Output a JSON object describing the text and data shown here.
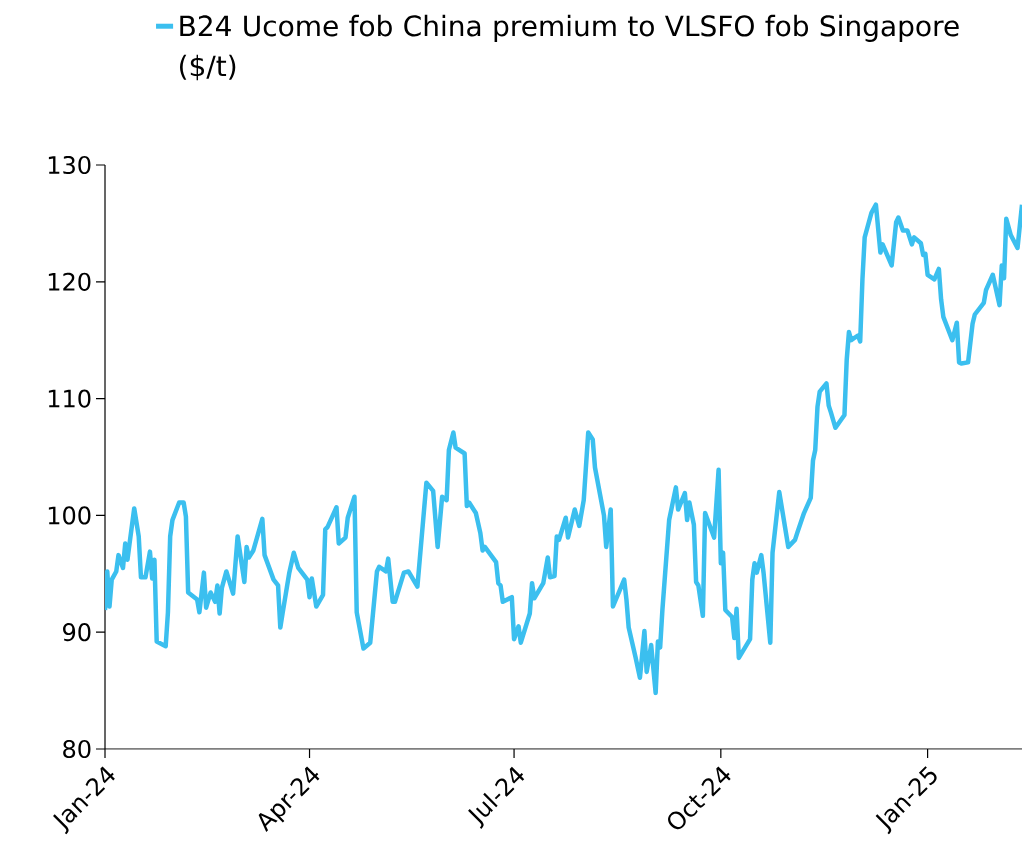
{
  "chart_data": {
    "type": "line",
    "legend": "top",
    "marker": "none",
    "line_style": "solid",
    "xlim": [
      "2024-01-01",
      "2025-02-12"
    ],
    "ylim": [
      80,
      130
    ],
    "yticks": [
      80,
      90,
      100,
      110,
      120,
      130
    ],
    "xticks": [
      {
        "value": "2024-01-01",
        "label": "Jan-24"
      },
      {
        "value": "2024-04-01",
        "label": "Apr-24"
      },
      {
        "value": "2024-07-01",
        "label": "Jul-24"
      },
      {
        "value": "2024-10-01",
        "label": "Oct-24"
      },
      {
        "value": "2025-01-01",
        "label": "Jan-25"
      }
    ],
    "x": [
      "2024-01-01",
      "2024-01-02",
      "2024-01-03",
      "2024-01-04",
      "2024-01-06",
      "2024-01-07",
      "2024-01-09",
      "2024-01-10",
      "2024-01-11",
      "2024-01-12",
      "2024-01-14",
      "2024-01-16",
      "2024-01-17",
      "2024-01-19",
      "2024-01-21",
      "2024-01-22",
      "2024-01-23",
      "2024-01-24",
      "2024-01-28",
      "2024-01-29",
      "2024-01-30",
      "2024-01-31",
      "2024-02-03",
      "2024-02-05",
      "2024-02-06",
      "2024-02-07",
      "2024-02-11",
      "2024-02-12",
      "2024-02-14",
      "2024-02-15",
      "2024-02-17",
      "2024-02-19",
      "2024-02-20",
      "2024-02-21",
      "2024-02-22",
      "2024-02-24",
      "2024-02-27",
      "2024-02-29",
      "2024-03-03",
      "2024-03-04",
      "2024-03-05",
      "2024-03-07",
      "2024-03-11",
      "2024-03-12",
      "2024-03-16",
      "2024-03-18",
      "2024-03-19",
      "2024-03-20",
      "2024-03-23",
      "2024-03-25",
      "2024-03-27",
      "2024-03-31",
      "2024-04-01",
      "2024-04-02",
      "2024-04-04",
      "2024-04-07",
      "2024-04-08",
      "2024-04-09",
      "2024-04-13",
      "2024-04-14",
      "2024-04-17",
      "2024-04-18",
      "2024-04-21",
      "2024-04-22",
      "2024-04-25",
      "2024-04-28",
      "2024-05-01",
      "2024-05-02",
      "2024-05-05",
      "2024-05-06",
      "2024-05-08",
      "2024-05-09",
      "2024-05-13",
      "2024-05-15",
      "2024-05-19",
      "2024-05-23",
      "2024-05-26",
      "2024-05-28",
      "2024-05-30",
      "2024-06-01",
      "2024-06-02",
      "2024-06-04",
      "2024-06-05",
      "2024-06-09",
      "2024-06-10",
      "2024-06-11",
      "2024-06-14",
      "2024-06-16",
      "2024-06-17",
      "2024-06-18",
      "2024-06-23",
      "2024-06-24",
      "2024-06-25",
      "2024-06-26",
      "2024-06-30",
      "2024-07-01",
      "2024-07-03",
      "2024-07-04",
      "2024-07-08",
      "2024-07-09",
      "2024-07-10",
      "2024-07-14",
      "2024-07-16",
      "2024-07-17",
      "2024-07-19",
      "2024-07-20",
      "2024-07-21",
      "2024-07-24",
      "2024-07-25",
      "2024-07-28",
      "2024-07-30",
      "2024-08-01",
      "2024-08-03",
      "2024-08-05",
      "2024-08-06",
      "2024-08-10",
      "2024-08-11",
      "2024-08-13",
      "2024-08-14",
      "2024-08-19",
      "2024-08-20",
      "2024-08-21",
      "2024-08-24",
      "2024-08-26",
      "2024-08-28",
      "2024-08-29",
      "2024-08-31",
      "2024-09-02",
      "2024-09-03",
      "2024-09-04",
      "2024-09-05",
      "2024-09-08",
      "2024-09-11",
      "2024-09-12",
      "2024-09-15",
      "2024-09-16",
      "2024-09-17",
      "2024-09-19",
      "2024-09-20",
      "2024-09-21",
      "2024-09-23",
      "2024-09-24",
      "2024-09-28",
      "2024-09-30",
      "2024-10-01",
      "2024-10-02",
      "2024-10-03",
      "2024-10-06",
      "2024-10-07",
      "2024-10-08",
      "2024-10-09",
      "2024-10-14",
      "2024-10-15",
      "2024-10-16",
      "2024-10-17",
      "2024-10-19",
      "2024-10-20",
      "2024-10-23",
      "2024-10-24",
      "2024-10-27",
      "2024-10-31",
      "2024-11-03",
      "2024-11-04",
      "2024-11-07",
      "2024-11-10",
      "2024-11-11",
      "2024-11-12",
      "2024-11-13",
      "2024-11-14",
      "2024-11-17",
      "2024-11-18",
      "2024-11-19",
      "2024-11-21",
      "2024-11-25",
      "2024-11-26",
      "2024-11-27",
      "2024-11-28",
      "2024-12-01",
      "2024-12-02",
      "2024-12-03",
      "2024-12-04",
      "2024-12-07",
      "2024-12-09",
      "2024-12-11",
      "2024-12-12",
      "2024-12-16",
      "2024-12-18",
      "2024-12-19",
      "2024-12-21",
      "2024-12-23",
      "2024-12-25",
      "2024-12-26",
      "2024-12-29",
      "2024-12-30",
      "2024-12-31",
      "2025-01-01",
      "2025-01-04",
      "2025-01-06",
      "2025-01-07",
      "2025-01-08",
      "2025-01-12",
      "2025-01-14",
      "2025-01-15",
      "2025-01-16",
      "2025-01-19",
      "2025-01-21",
      "2025-01-22",
      "2025-01-26",
      "2025-01-27",
      "2025-01-30",
      "2025-02-02",
      "2025-02-03",
      "2025-02-04",
      "2025-02-05",
      "2025-02-07",
      "2025-02-10",
      "2025-02-12"
    ],
    "series": [
      {
        "name": "B24 Ucome fob China premium to VLSFO fob Singapore ($/t)",
        "color": "#3bbfef",
        "values": [
          91.9,
          95.2,
          92.2,
          94.5,
          95.2,
          96.6,
          95.5,
          97.6,
          96.2,
          97.7,
          100.6,
          98.2,
          94.7,
          94.7,
          96.9,
          94.6,
          96.2,
          89.2,
          88.8,
          91.7,
          98.2,
          99.6,
          101.1,
          101.1,
          99.9,
          93.4,
          92.8,
          91.7,
          95.1,
          92.1,
          93.4,
          92.6,
          94.0,
          91.6,
          93.8,
          95.2,
          93.3,
          98.2,
          94.3,
          97.3,
          96.4,
          97.0,
          99.7,
          96.6,
          94.5,
          94.0,
          90.4,
          91.6,
          95.1,
          96.8,
          95.5,
          94.5,
          93.0,
          94.6,
          92.2,
          93.2,
          98.8,
          99.0,
          100.7,
          97.6,
          98.1,
          99.8,
          101.6,
          91.7,
          88.6,
          89.1,
          95.2,
          95.6,
          95.2,
          96.3,
          92.6,
          92.6,
          95.1,
          95.2,
          93.9,
          102.8,
          102.1,
          97.3,
          101.6,
          101.3,
          105.6,
          107.1,
          105.8,
          105.3,
          100.8,
          101.1,
          100.2,
          98.5,
          97.0,
          97.3,
          96.0,
          94.2,
          94.0,
          92.6,
          93.0,
          89.4,
          90.5,
          89.1,
          91.6,
          94.2,
          92.9,
          94.2,
          96.4,
          94.7,
          94.8,
          98.2,
          97.9,
          99.8,
          98.1,
          100.5,
          99.1,
          101.3,
          107.1,
          106.5,
          104.1,
          100.0,
          97.3,
          100.5,
          92.2,
          94.5,
          92.8,
          90.4,
          87.9,
          86.1,
          90.1,
          86.6,
          88.9,
          84.8,
          89.2,
          88.7,
          91.9,
          99.6,
          102.4,
          100.5,
          101.9,
          99.6,
          101.1,
          99.2,
          94.3,
          94.0,
          91.4,
          100.2,
          98.1,
          103.9,
          95.9,
          96.8,
          91.9,
          91.3,
          89.5,
          92.0,
          87.8,
          89.4,
          94.5,
          95.9,
          95.1,
          96.6,
          95.1,
          89.1,
          96.8,
          102.0,
          97.3,
          97.9,
          98.5,
          100.2,
          101.5,
          104.7,
          105.6,
          109.3,
          110.6,
          111.3,
          109.4,
          108.8,
          107.5,
          108.6,
          113.3,
          115.7,
          115.0,
          115.4,
          114.9,
          120.2,
          123.8,
          125.9,
          126.6,
          122.5,
          123.2,
          121.4,
          125.1,
          125.5,
          124.4,
          124.4,
          123.2,
          123.8,
          123.3,
          122.3,
          122.4,
          120.6,
          120.2,
          121.1,
          118.5,
          117.0,
          115.0,
          116.5,
          113.1,
          113.0,
          113.1,
          116.4,
          117.2,
          118.2,
          119.3,
          120.6,
          118.0,
          121.4,
          120.3,
          125.4,
          124.0,
          122.9,
          126.6
        ]
      }
    ]
  }
}
